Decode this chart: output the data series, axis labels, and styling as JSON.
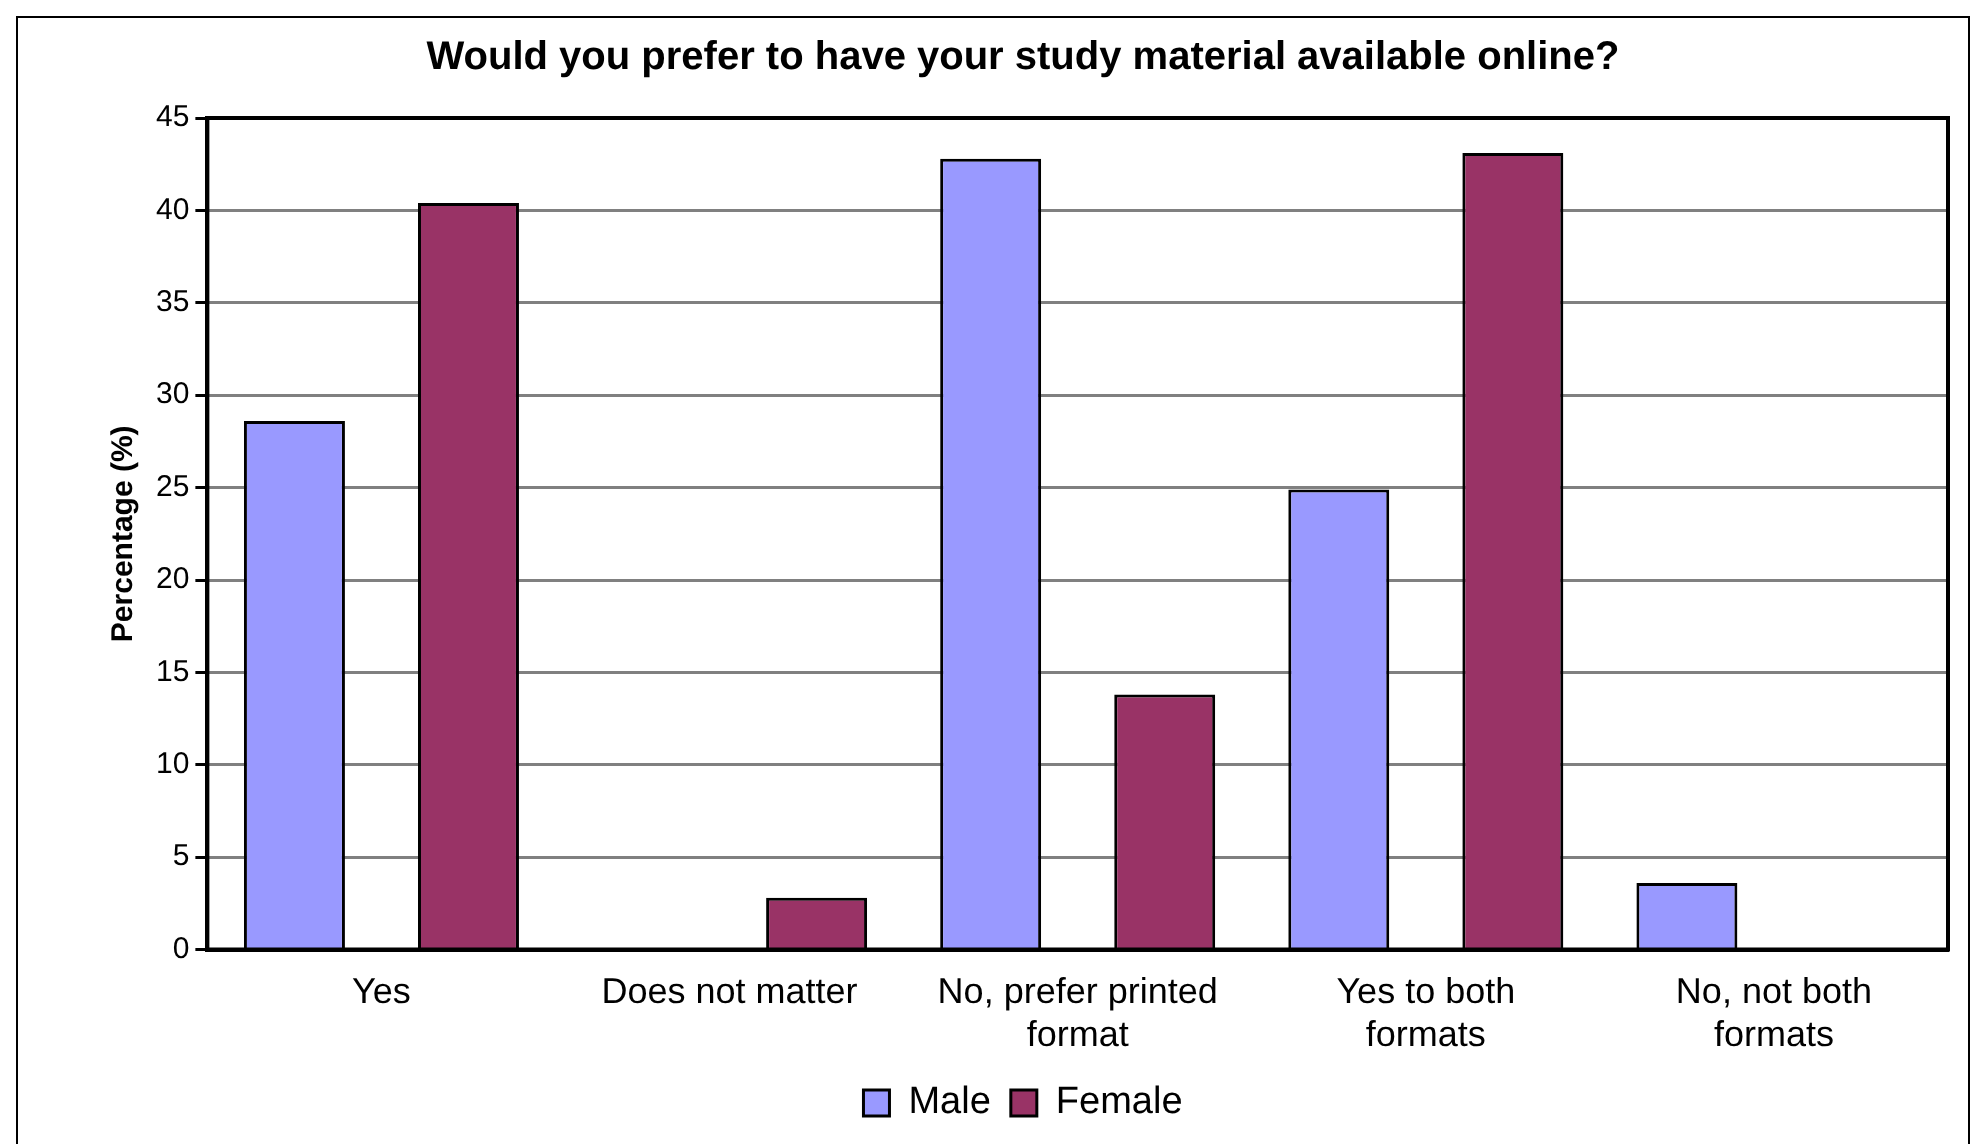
{
  "chart_data": {
    "type": "bar",
    "title": "Would you prefer to have your study material available online?",
    "ylabel": "Percentage (%)",
    "categories": [
      "Yes",
      "Does not matter",
      "No, prefer printed format",
      "Yes to both formats",
      "No, not both formats"
    ],
    "series": [
      {
        "name": "Male",
        "color": "#9999ff",
        "values": [
          28.6,
          0,
          42.8,
          24.9,
          3.6
        ]
      },
      {
        "name": "Female",
        "color": "#993366",
        "values": [
          40.4,
          2.8,
          13.8,
          43.1,
          0
        ]
      }
    ],
    "ylim": [
      0,
      45
    ],
    "yticks": [
      0,
      5,
      10,
      15,
      20,
      25,
      30,
      35,
      40,
      45
    ],
    "grid": "y",
    "legend": "bottom"
  }
}
